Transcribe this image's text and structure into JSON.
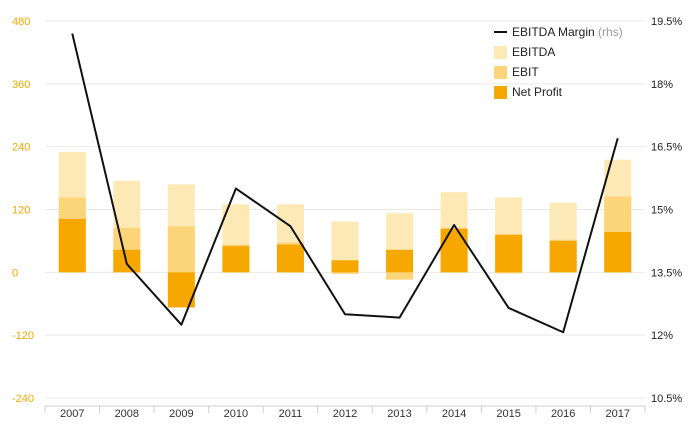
{
  "chart_data": {
    "type": "bar",
    "categories": [
      "2007",
      "2008",
      "2009",
      "2010",
      "2011",
      "2012",
      "2013",
      "2014",
      "2015",
      "2016",
      "2017"
    ],
    "series": [
      {
        "name": "EBITDA",
        "kind": "bar",
        "color": "#fde9b5",
        "values": [
          230,
          175,
          168,
          130,
          130,
          97,
          113,
          153,
          143,
          133,
          215
        ]
      },
      {
        "name": "EBIT",
        "kind": "bar",
        "color": "#fcd47a",
        "values": [
          143,
          85,
          88,
          53,
          57,
          -3,
          -14,
          85,
          -2,
          62,
          145
        ]
      },
      {
        "name": "Net Profit",
        "kind": "bar",
        "color": "#f7a800",
        "values": [
          102,
          43,
          -67,
          50,
          53,
          23,
          43,
          83,
          72,
          60,
          77
        ]
      },
      {
        "name": "EBITDA Margin",
        "name_note": "(rhs)",
        "kind": "line",
        "axis": "right",
        "color": "#111111",
        "values": [
          19.2,
          13.7,
          12.25,
          15.5,
          14.6,
          12.5,
          12.42,
          14.63,
          12.65,
          12.07,
          16.7
        ]
      }
    ],
    "left_axis": {
      "ylim": [
        -240,
        480
      ],
      "ticks": [
        "480",
        "360",
        "240",
        "120",
        "0",
        "-120",
        "-240"
      ],
      "color": "#f0a800"
    },
    "right_axis": {
      "ylim": [
        10.5,
        19.5
      ],
      "ticks": [
        "19.5%",
        "18%",
        "16.5%",
        "15%",
        "13.5%",
        "12%",
        "10.5%"
      ]
    },
    "legend_position": "top-right",
    "grid": true
  }
}
